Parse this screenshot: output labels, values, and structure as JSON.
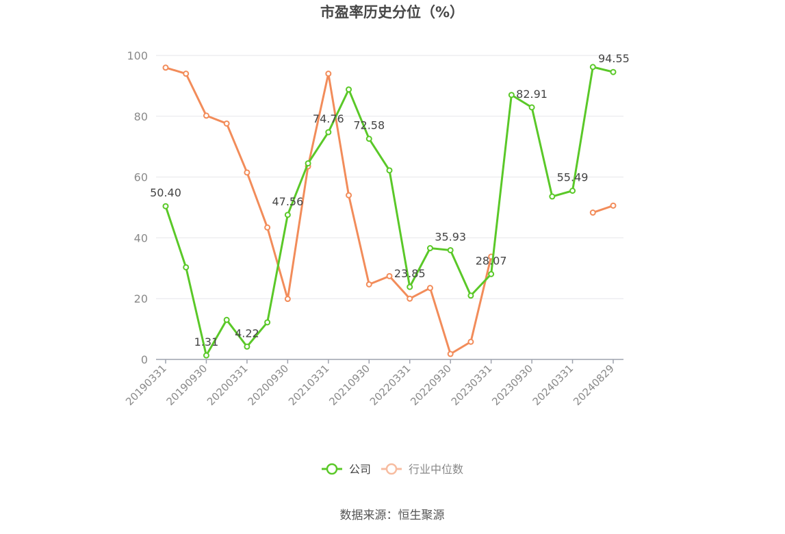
{
  "chart_data": {
    "type": "line",
    "title": "市盈率历史分位（%）",
    "xlabel": "",
    "ylabel": "",
    "ylim": [
      0,
      100
    ],
    "yticks": [
      "0",
      "20",
      "40",
      "60",
      "80",
      "100"
    ],
    "grid": true,
    "legend_position": "bottom",
    "x_tick_labels": [
      "20190331",
      "20190930",
      "20200331",
      "20200930",
      "20210331",
      "20210930",
      "20220331",
      "20220930",
      "20230331",
      "20230930",
      "20240331",
      "20240829"
    ],
    "x": [
      "20190331",
      "20190630",
      "20190930",
      "20191231",
      "20200331",
      "20200630",
      "20200930",
      "20201231",
      "20210331",
      "20210630",
      "20210930",
      "20211231",
      "20220331",
      "20220630",
      "20220930",
      "20221231",
      "20230331",
      "20230630",
      "20230930",
      "20231231",
      "20240331",
      "20240630",
      "20240829"
    ],
    "series": [
      {
        "name": "公司",
        "color": "#5ac828",
        "values": [
          50.4,
          30.3,
          1.31,
          13.0,
          4.22,
          12.2,
          47.56,
          64.5,
          74.76,
          88.8,
          72.58,
          62.2,
          23.85,
          36.6,
          35.93,
          21.0,
          28.07,
          87.0,
          82.91,
          53.6,
          55.49,
          96.2,
          94.55
        ],
        "labels": [
          "50.40",
          null,
          "1.31",
          null,
          "4.22",
          null,
          "47.56",
          null,
          "74.76",
          null,
          "72.58",
          null,
          "23.85",
          null,
          "35.93",
          null,
          "28.07",
          null,
          "82.91",
          null,
          "55.49",
          null,
          "94.55"
        ]
      },
      {
        "name": "行业中位数",
        "color": "#f28c5a",
        "values": [
          96.0,
          94.0,
          80.2,
          77.6,
          61.5,
          43.4,
          19.9,
          63.5,
          94.0,
          54.0,
          24.7,
          27.4,
          20.0,
          23.5,
          1.8,
          5.8,
          33.8,
          null,
          null,
          null,
          null,
          48.3,
          50.6
        ]
      }
    ],
    "source": "数据来源：恒生聚源"
  }
}
